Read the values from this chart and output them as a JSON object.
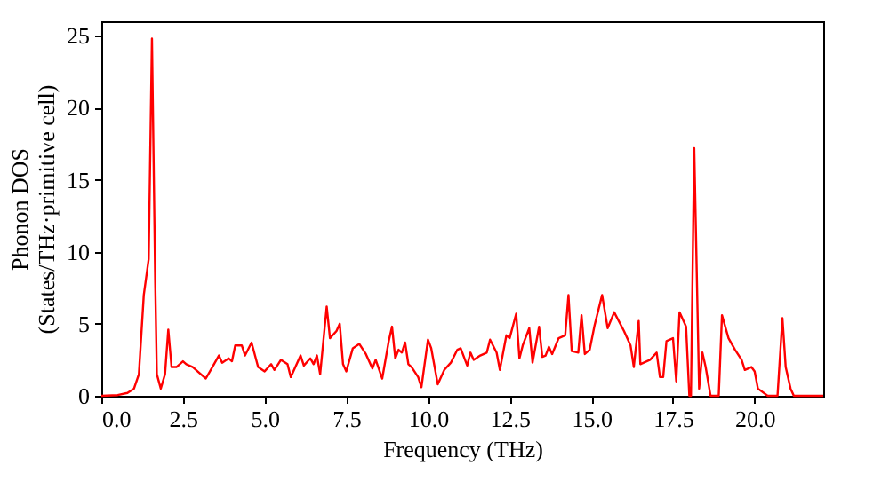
{
  "chart_data": {
    "type": "line",
    "xlabel": "Frequency (THz)",
    "ylabel": "Phonon DOS\n(States/THz·primitive cell)",
    "x": [
      0,
      0.5,
      0.8,
      1.0,
      1.15,
      1.3,
      1.45,
      1.55,
      1.65,
      1.7,
      1.82,
      1.95,
      2.05,
      2.15,
      2.3,
      2.5,
      2.6,
      2.8,
      3.0,
      3.2,
      3.4,
      3.6,
      3.7,
      3.9,
      4.0,
      4.1,
      4.3,
      4.4,
      4.6,
      4.8,
      5.0,
      5.2,
      5.3,
      5.5,
      5.7,
      5.8,
      6.1,
      6.2,
      6.4,
      6.5,
      6.6,
      6.7,
      6.9,
      7.0,
      7.2,
      7.3,
      7.4,
      7.5,
      7.7,
      7.9,
      8.1,
      8.3,
      8.4,
      8.6,
      8.8,
      8.9,
      9.0,
      9.1,
      9.2,
      9.3,
      9.4,
      9.5,
      9.7,
      9.8,
      10.0,
      10.1,
      10.3,
      10.5,
      10.7,
      10.9,
      11.0,
      11.2,
      11.3,
      11.4,
      11.6,
      11.8,
      11.9,
      12.1,
      12.2,
      12.4,
      12.5,
      12.7,
      12.8,
      12.9,
      13.1,
      13.2,
      13.4,
      13.5,
      13.6,
      13.7,
      13.8,
      14.0,
      14.2,
      14.3,
      14.4,
      14.6,
      14.7,
      14.8,
      14.95,
      15.1,
      15.33,
      15.5,
      15.7,
      16.0,
      16.2,
      16.3,
      16.45,
      16.5,
      16.8,
      17.0,
      17.1,
      17.2,
      17.3,
      17.5,
      17.6,
      17.7,
      17.9,
      18.0,
      18.05,
      18.15,
      18.3,
      18.4,
      18.5,
      18.65,
      18.9,
      19.0,
      19.2,
      19.4,
      19.6,
      19.7,
      19.9,
      20.0,
      20.1,
      20.4,
      20.7,
      20.85,
      20.95,
      21.1,
      21.2,
      22.1
    ],
    "series": [
      {
        "color": "#ff0000",
        "values": [
          0,
          0.05,
          0.2,
          0.5,
          1.5,
          7,
          9.5,
          24.8,
          8,
          1.5,
          0.5,
          1.5,
          4.6,
          2.0,
          2.0,
          2.4,
          2.2,
          2.0,
          1.6,
          1.2,
          2.0,
          2.8,
          2.3,
          2.6,
          2.4,
          3.5,
          3.5,
          2.8,
          3.7,
          2.0,
          1.7,
          2.2,
          1.8,
          2.5,
          2.2,
          1.3,
          2.8,
          2.1,
          2.6,
          2.2,
          2.8,
          1.5,
          6.2,
          4.0,
          4.5,
          5.0,
          2.2,
          1.7,
          3.3,
          3.6,
          2.9,
          1.9,
          2.5,
          1.2,
          3.8,
          4.8,
          2.6,
          3.2,
          3.0,
          3.7,
          2.2,
          2.0,
          1.3,
          0.6,
          3.9,
          3.3,
          0.8,
          1.8,
          2.3,
          3.2,
          3.3,
          2.1,
          3.0,
          2.5,
          2.8,
          3.0,
          3.9,
          3.0,
          1.8,
          4.2,
          4.0,
          5.7,
          2.6,
          3.5,
          4.7,
          2.3,
          4.8,
          2.7,
          2.8,
          3.4,
          2.9,
          4.0,
          4.2,
          7.0,
          3.1,
          3.0,
          5.6,
          2.9,
          3.2,
          4.9,
          7.0,
          4.7,
          5.8,
          4.5,
          3.5,
          2.0,
          5.2,
          2.2,
          2.5,
          3.0,
          1.3,
          1.3,
          3.8,
          4.0,
          1.0,
          5.8,
          4.8,
          0,
          0,
          17.2,
          0.5,
          3.0,
          2.0,
          0,
          0,
          5.6,
          4.0,
          3.2,
          2.5,
          1.8,
          2.0,
          1.7,
          0.5,
          0,
          0,
          5.4,
          2.0,
          0.5,
          0,
          0
        ]
      }
    ],
    "xlim": [
      0,
      22.1
    ],
    "ylim": [
      0,
      26
    ],
    "xticks": [
      {
        "value": 0,
        "label": "0.0"
      },
      {
        "value": 2.5,
        "label": "2.5"
      },
      {
        "value": 5,
        "label": "5.0"
      },
      {
        "value": 7.5,
        "label": "7.5"
      },
      {
        "value": 10,
        "label": "10.0"
      },
      {
        "value": 12.5,
        "label": "12.5"
      },
      {
        "value": 15,
        "label": "15.0"
      },
      {
        "value": 17.5,
        "label": "17.5"
      },
      {
        "value": 20,
        "label": "20.0"
      }
    ],
    "yticks": [
      0,
      5,
      10,
      15,
      20,
      25
    ]
  }
}
